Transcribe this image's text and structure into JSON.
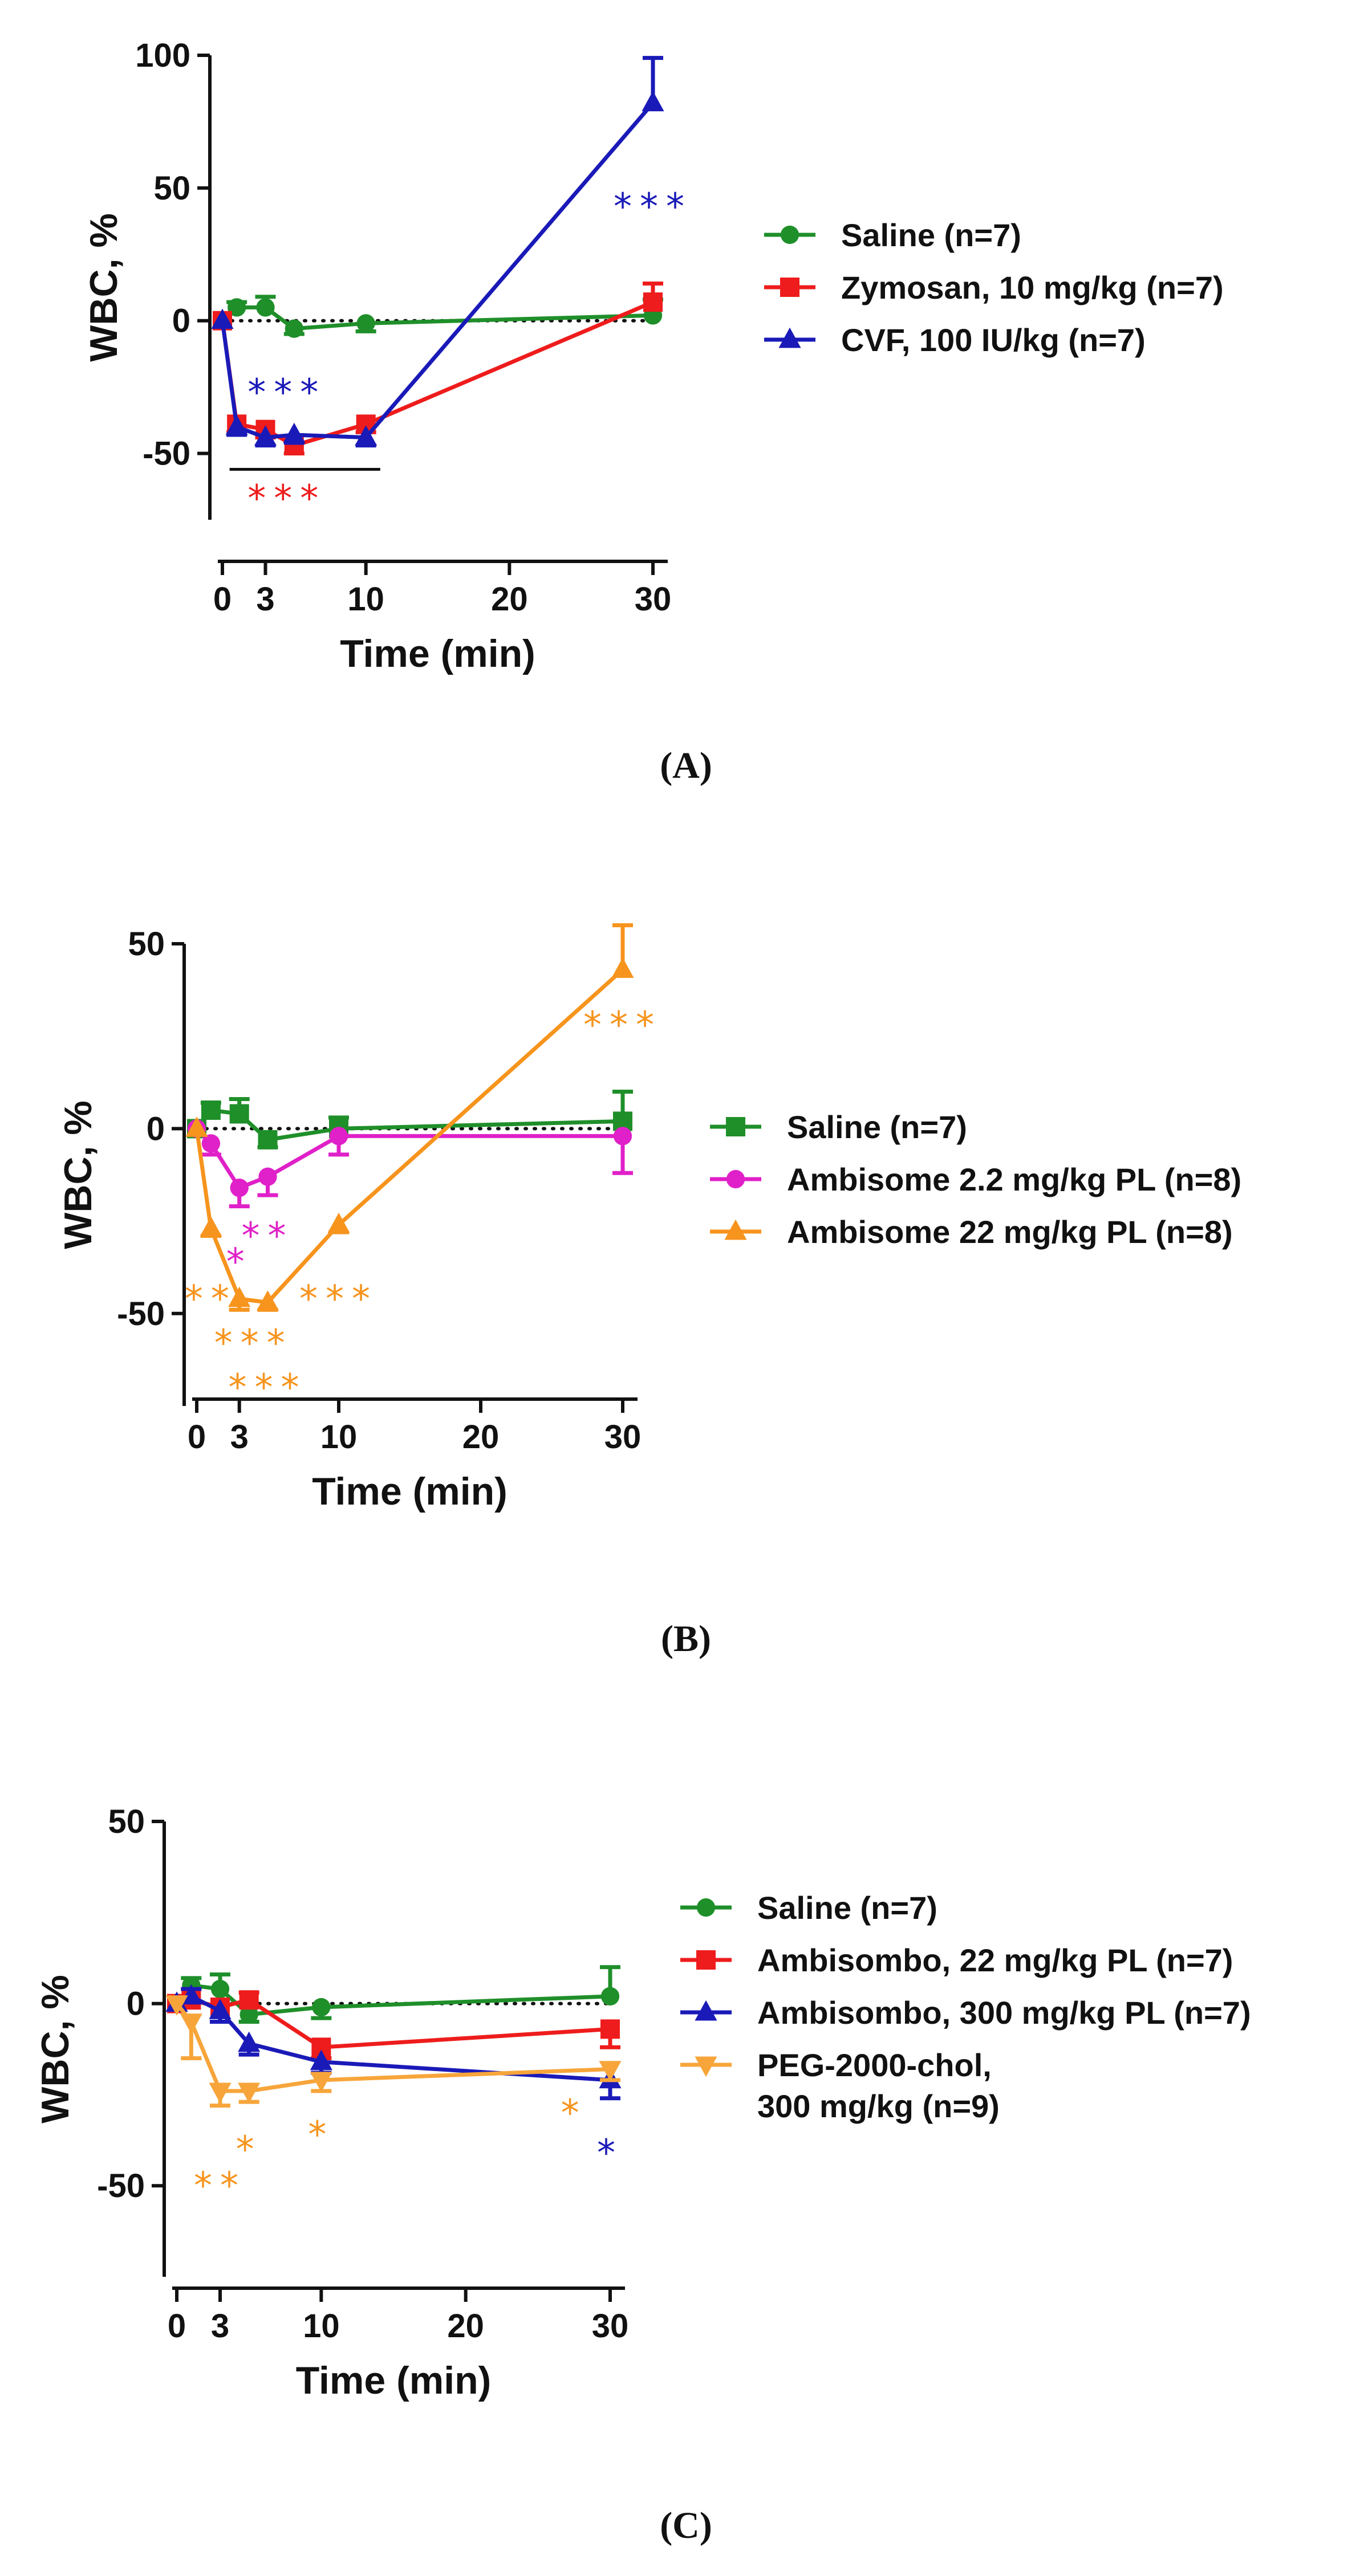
{
  "figure": {
    "panel_labels": [
      "(A)",
      "(B)",
      "(C)"
    ]
  },
  "chart_data": [
    {
      "panel": "(A)",
      "type": "line",
      "xlabel": "Time (min)",
      "ylabel": "WBC, %",
      "xlim": [
        0,
        30
      ],
      "ylim": [
        -75,
        100
      ],
      "xticks": [
        0,
        3,
        10,
        20,
        30
      ],
      "yticks": [
        -50,
        0,
        50,
        100
      ],
      "reference_line": 0,
      "legend_position": "right",
      "series": [
        {
          "name": "Saline (n=7)",
          "color": "#1f8f2a",
          "marker": "circle",
          "x": [
            0,
            1,
            3,
            5,
            10,
            30
          ],
          "y": [
            0,
            5,
            5,
            -3,
            -1,
            2
          ],
          "err": [
            0,
            2,
            4,
            2,
            3,
            6
          ]
        },
        {
          "name": "Zymosan, 10 mg/kg (n=7)",
          "color": "#ee1c1c",
          "marker": "square",
          "x": [
            0,
            1,
            3,
            5,
            10,
            30
          ],
          "y": [
            0,
            -39,
            -41,
            -47,
            -39,
            7
          ],
          "err": [
            0,
            3,
            3,
            3,
            3,
            7
          ]
        },
        {
          "name": "CVF, 100 IU/kg (n=7)",
          "color": "#1a1ab8",
          "marker": "triangle",
          "x": [
            0,
            1,
            3,
            5,
            10,
            30
          ],
          "y": [
            0,
            -40,
            -44,
            -43,
            -44,
            82
          ],
          "err": [
            0,
            3,
            3,
            3,
            3,
            17
          ]
        }
      ],
      "annotations": [
        {
          "text": "***",
          "color": "#1a1ab8",
          "x": 30,
          "y": 43
        },
        {
          "text": "***",
          "color": "#1a1ab8",
          "x": 4.5,
          "y": -27
        },
        {
          "text": "***",
          "color": "#ee1c1c",
          "x": 4.5,
          "y": -67
        }
      ],
      "significance_bar": {
        "x": [
          0.5,
          11
        ],
        "y": -56
      }
    },
    {
      "panel": "(B)",
      "type": "line",
      "xlabel": "Time (min)",
      "ylabel": "WBC, %",
      "xlim": [
        0,
        30
      ],
      "ylim": [
        -75,
        50
      ],
      "xticks": [
        0,
        3,
        10,
        20,
        30
      ],
      "yticks": [
        -50,
        0,
        50
      ],
      "reference_line": 0,
      "legend_position": "right",
      "series": [
        {
          "name": "Saline (n=7)",
          "color": "#1f8f2a",
          "marker": "square",
          "x": [
            0,
            1,
            3,
            5,
            10,
            30
          ],
          "y": [
            0,
            5,
            4,
            -3,
            0,
            2
          ],
          "err": [
            0,
            2,
            4,
            2,
            3,
            8
          ]
        },
        {
          "name": "Ambisome 2.2 mg/kg PL (n=8)",
          "color": "#e020c8",
          "marker": "circle",
          "x": [
            0,
            1,
            3,
            5,
            10,
            30
          ],
          "y": [
            0,
            -4,
            -16,
            -13,
            -2,
            -2
          ],
          "err": [
            0,
            3,
            5,
            5,
            5,
            10
          ]
        },
        {
          "name": "Ambisome 22 mg/kg PL (n=8)",
          "color": "#f7941d",
          "marker": "triangle",
          "x": [
            0,
            1,
            3,
            5,
            10,
            30
          ],
          "y": [
            0,
            -27,
            -46,
            -47,
            -26,
            43
          ],
          "err": [
            0,
            2,
            3,
            2,
            2,
            12
          ]
        }
      ],
      "annotations": [
        {
          "text": "***",
          "color": "#f7941d",
          "x": 30,
          "y": 28
        },
        {
          "text": "**",
          "color": "#e020c8",
          "x": 5,
          "y": -29
        },
        {
          "text": "*",
          "color": "#e020c8",
          "x": 3,
          "y": -36
        },
        {
          "text": "**",
          "color": "#f7941d",
          "x": 1,
          "y": -46
        },
        {
          "text": "***",
          "color": "#f7941d",
          "x": 10,
          "y": -46
        },
        {
          "text": "***",
          "color": "#f7941d",
          "x": 4,
          "y": -58
        },
        {
          "text": "***",
          "color": "#f7941d",
          "x": 5,
          "y": -70
        }
      ]
    },
    {
      "panel": "(C)",
      "type": "line",
      "xlabel": "Time (min)",
      "ylabel": "WBC, %",
      "xlim": [
        0,
        30
      ],
      "ylim": [
        -75,
        50
      ],
      "xticks": [
        0,
        3,
        10,
        20,
        30
      ],
      "yticks": [
        -50,
        0,
        50
      ],
      "reference_line": 0,
      "legend_position": "right",
      "series": [
        {
          "name": "Saline (n=7)",
          "color": "#1f8f2a",
          "marker": "circle",
          "x": [
            1,
            3,
            5,
            10,
            30
          ],
          "y": [
            5,
            4,
            -3,
            -1,
            2
          ],
          "err": [
            2,
            4,
            2,
            3,
            8
          ]
        },
        {
          "name": "Ambisombo, 22 mg/kg PL (n=7)",
          "color": "#ee1c1c",
          "marker": "square",
          "x": [
            0,
            1,
            3,
            5,
            10,
            30
          ],
          "y": [
            0,
            1,
            -1,
            1,
            -12,
            -7
          ],
          "err": [
            0,
            3,
            4,
            2,
            3,
            5
          ]
        },
        {
          "name": "Ambisombo, 300 mg/kg PL (n=7)",
          "color": "#1a1ab8",
          "marker": "triangle",
          "x": [
            0,
            1,
            3,
            5,
            10,
            30
          ],
          "y": [
            0,
            2,
            -2,
            -11,
            -16,
            -21
          ],
          "err": [
            0,
            2,
            3,
            3,
            3,
            5
          ]
        },
        {
          "name": "PEG-2000-chol,",
          "name_line2": "300 mg/kg (n=9)",
          "color": "#f7a53a",
          "marker": "triangle-down",
          "x": [
            0,
            1,
            3,
            5,
            10,
            30
          ],
          "y": [
            0,
            -5,
            -24,
            -24,
            -21,
            -18
          ],
          "err": [
            0,
            10,
            4,
            3,
            3,
            3
          ]
        }
      ],
      "annotations": [
        {
          "text": "**",
          "color": "#f7941d",
          "x": 3,
          "y": -50
        },
        {
          "text": "*",
          "color": "#f7941d",
          "x": 5,
          "y": -40
        },
        {
          "text": "*",
          "color": "#f7941d",
          "x": 10,
          "y": -36
        },
        {
          "text": "*",
          "color": "#f7941d",
          "x": 27.5,
          "y": -30
        },
        {
          "text": "*",
          "color": "#1a1ab8",
          "x": 30,
          "y": -41
        }
      ]
    }
  ]
}
